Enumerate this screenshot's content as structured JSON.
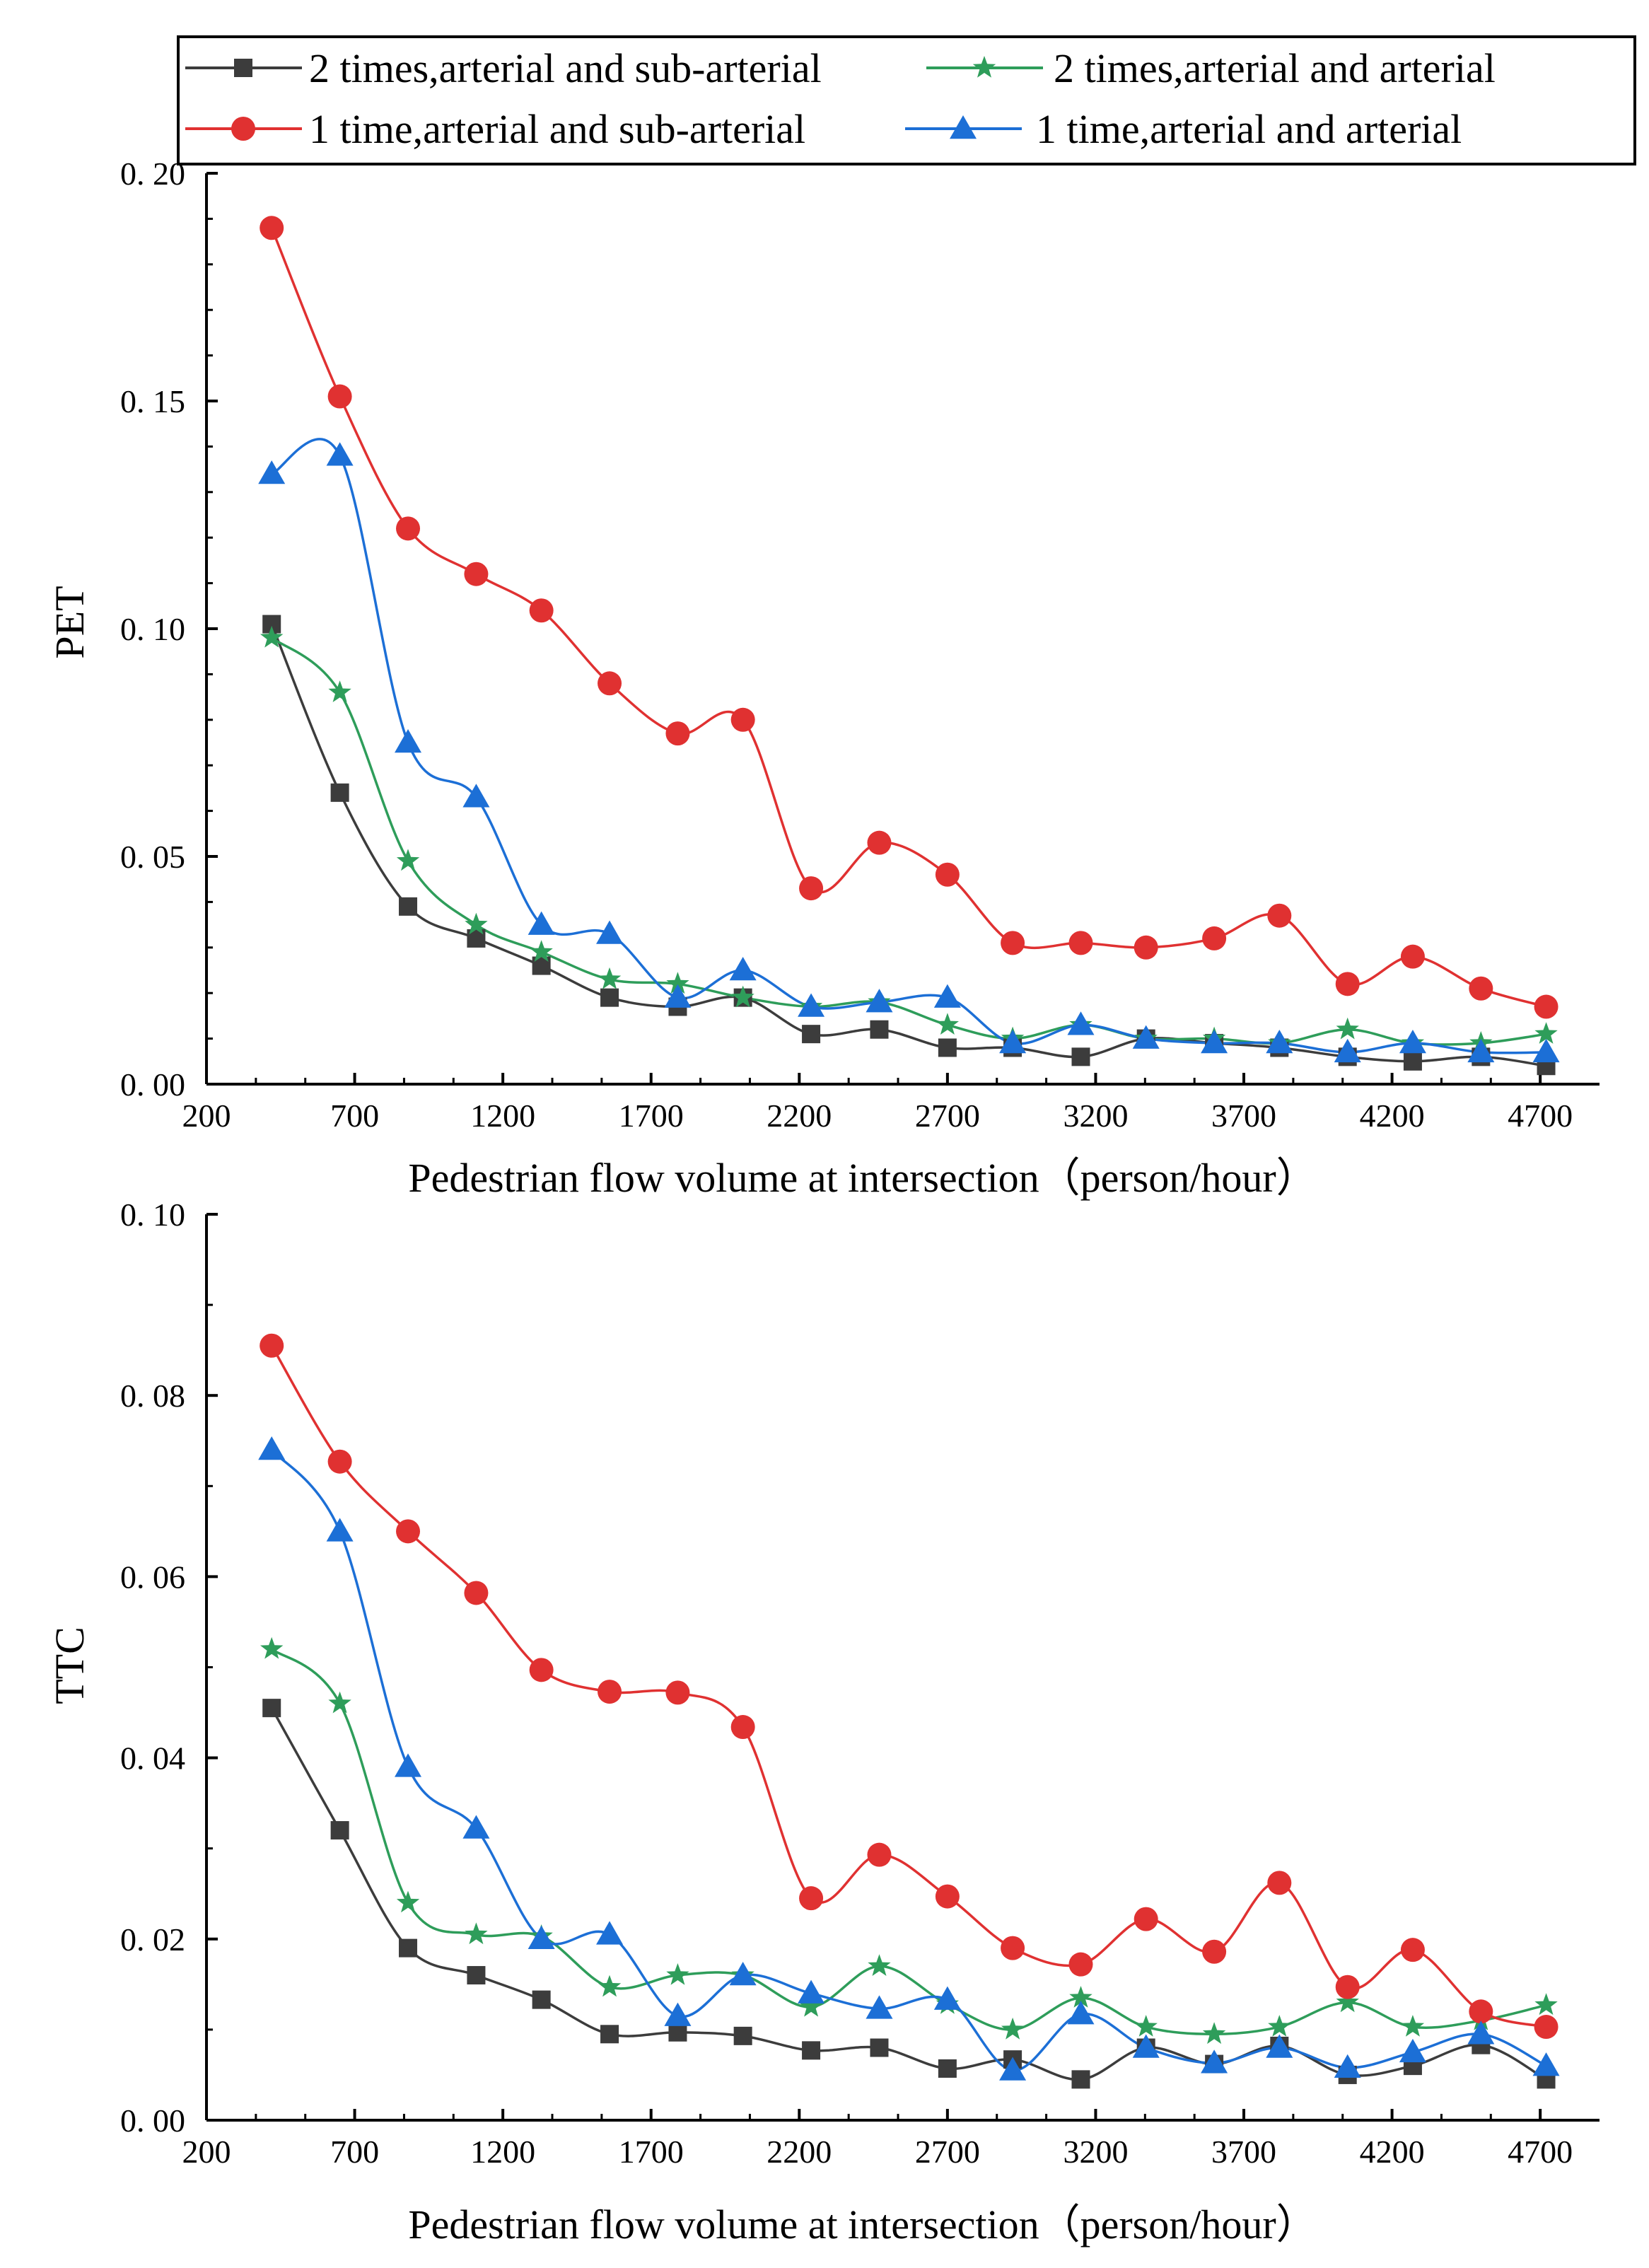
{
  "legend": {
    "entries": [
      {
        "label": "2 times,arterial and sub-arterial",
        "marker": "square",
        "color": "#3c3c3c"
      },
      {
        "label": "2 times,arterial and arterial",
        "marker": "star",
        "color": "#2e9d5a"
      },
      {
        "label": "1 time,arterial and sub-arterial",
        "marker": "circle",
        "color": "#e03131"
      },
      {
        "label": "1 time,arterial and arterial",
        "marker": "triangle",
        "color": "#1c6fd6"
      }
    ]
  },
  "chart_data": [
    {
      "type": "line",
      "title": "",
      "xlabel": "Pedestrian flow volume at intersection（person/hour）",
      "ylabel": "PET",
      "xlim": [
        200,
        4900
      ],
      "ylim": [
        0.0,
        0.2
      ],
      "xticks": [
        200,
        700,
        1200,
        1700,
        2200,
        2700,
        3200,
        3700,
        4200,
        4700
      ],
      "xtick_labels": [
        "200",
        "700",
        "1200",
        "1700",
        "2200",
        "2700",
        "3200",
        "3700",
        "4200",
        "4700"
      ],
      "yticks": [
        0.0,
        0.05,
        0.1,
        0.15,
        0.2
      ],
      "ytick_labels": [
        "0. 00",
        "0. 05",
        "0. 10",
        "0. 15",
        "0. 20"
      ],
      "x": [
        420,
        650,
        880,
        1110,
        1330,
        1560,
        1790,
        2010,
        2240,
        2470,
        2700,
        2920,
        3150,
        3370,
        3600,
        3820,
        4050,
        4270,
        4500,
        4720
      ],
      "series": [
        {
          "name": "2 times,arterial and sub-arterial",
          "values": [
            0.101,
            0.064,
            0.039,
            0.032,
            0.026,
            0.019,
            0.017,
            0.019,
            0.011,
            0.012,
            0.008,
            0.008,
            0.006,
            0.01,
            0.009,
            0.008,
            0.006,
            0.005,
            0.006,
            0.004
          ]
        },
        {
          "name": "2 times,arterial and arterial",
          "values": [
            0.098,
            0.086,
            0.049,
            0.035,
            0.029,
            0.023,
            0.022,
            0.019,
            0.017,
            0.018,
            0.013,
            0.01,
            0.013,
            0.01,
            0.01,
            0.009,
            0.012,
            0.009,
            0.009,
            0.011
          ]
        },
        {
          "name": "1 time,arterial and sub-arterial",
          "values": [
            0.188,
            0.151,
            0.122,
            0.112,
            0.104,
            0.088,
            0.077,
            0.08,
            0.043,
            0.053,
            0.046,
            0.031,
            0.031,
            0.03,
            0.032,
            0.037,
            0.022,
            0.028,
            0.021,
            0.017
          ]
        },
        {
          "name": "1 time,arterial and arterial",
          "values": [
            0.134,
            0.138,
            0.075,
            0.063,
            0.035,
            0.033,
            0.019,
            0.025,
            0.017,
            0.018,
            0.019,
            0.009,
            0.013,
            0.01,
            0.009,
            0.009,
            0.007,
            0.009,
            0.007,
            0.007
          ]
        }
      ]
    },
    {
      "type": "line",
      "title": "",
      "xlabel": "Pedestrian flow volume at intersection（person/hour）",
      "ylabel": "TTC",
      "xlim": [
        200,
        4900
      ],
      "ylim": [
        0.0,
        0.1
      ],
      "xticks": [
        200,
        700,
        1200,
        1700,
        2200,
        2700,
        3200,
        3700,
        4200,
        4700
      ],
      "xtick_labels": [
        "200",
        "700",
        "1200",
        "1700",
        "2200",
        "2700",
        "3200",
        "3700",
        "4200",
        "4700"
      ],
      "yticks": [
        0.0,
        0.02,
        0.04,
        0.06,
        0.08,
        0.1
      ],
      "ytick_labels": [
        "0. 00",
        "0. 02",
        "0. 04",
        "0. 06",
        "0. 08",
        "0. 10"
      ],
      "x": [
        420,
        650,
        880,
        1110,
        1330,
        1560,
        1790,
        2010,
        2240,
        2470,
        2700,
        2920,
        3150,
        3370,
        3600,
        3820,
        4050,
        4270,
        4500,
        4720
      ],
      "series": [
        {
          "name": "2 times,arterial and sub-arterial",
          "values": [
            0.0455,
            0.032,
            0.019,
            0.016,
            0.0133,
            0.0095,
            0.0097,
            0.0093,
            0.0077,
            0.008,
            0.0057,
            0.0067,
            0.0045,
            0.008,
            0.0062,
            0.0082,
            0.005,
            0.006,
            0.0083,
            0.0045
          ]
        },
        {
          "name": "2 times,arterial and arterial",
          "values": [
            0.052,
            0.046,
            0.024,
            0.0205,
            0.0203,
            0.0147,
            0.016,
            0.016,
            0.0125,
            0.017,
            0.0128,
            0.01,
            0.0135,
            0.0103,
            0.0095,
            0.0103,
            0.013,
            0.0103,
            0.011,
            0.0127
          ]
        },
        {
          "name": "1 time,arterial and sub-arterial",
          "values": [
            0.0855,
            0.0727,
            0.065,
            0.0582,
            0.0497,
            0.0473,
            0.0472,
            0.0434,
            0.0245,
            0.0293,
            0.0247,
            0.019,
            0.0172,
            0.0222,
            0.0186,
            0.0262,
            0.0147,
            0.0188,
            0.012,
            0.0103
          ]
        },
        {
          "name": "1 time,arterial and arterial",
          "values": [
            0.074,
            0.065,
            0.039,
            0.0322,
            0.02,
            0.0205,
            0.0115,
            0.016,
            0.014,
            0.0123,
            0.0133,
            0.0055,
            0.0117,
            0.008,
            0.0063,
            0.008,
            0.0058,
            0.0075,
            0.0095,
            0.006
          ]
        }
      ]
    }
  ]
}
